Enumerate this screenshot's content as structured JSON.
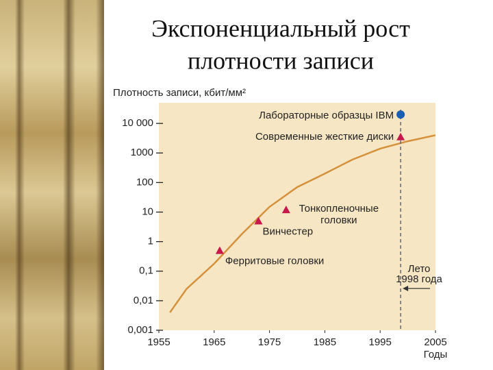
{
  "chart_data": {
    "type": "line",
    "title": [
      "Экспоненциальный рост",
      "плотности записи"
    ],
    "y_label": "Плотность записи, кбит/мм²",
    "x_label": "Годы",
    "log_y": true,
    "plot_color": "#f7e6c4",
    "xlim": [
      1955,
      2005
    ],
    "xticks": [
      1955,
      1965,
      1975,
      1985,
      1995,
      2005
    ],
    "ylim": [
      0.001,
      50000
    ],
    "yticks": [
      {
        "value": 0.001,
        "label": "0,001"
      },
      {
        "value": 0.01,
        "label": "0,01"
      },
      {
        "value": 0.1,
        "label": "0,1"
      },
      1,
      10,
      100,
      1000,
      {
        "value": 10000,
        "label": "10 000"
      }
    ],
    "x": [
      1957,
      1960,
      1965,
      1970,
      1975,
      1980,
      1985,
      1990,
      1995,
      2000,
      2005
    ],
    "series": [
      {
        "color": "#d4903a",
        "values": [
          0.004,
          0.025,
          0.18,
          1.8,
          15,
          70,
          200,
          600,
          1400,
          2500,
          4000
        ]
      }
    ],
    "points": [
      {
        "label": [
          "Ферритовые головки"
        ],
        "x": 1966,
        "y": 0.5,
        "marker": "triangle",
        "color": "#c8174a"
      },
      {
        "label": [
          "Винчестер"
        ],
        "x": 1973,
        "y": 5,
        "marker": "triangle",
        "color": "#c8174a"
      },
      {
        "label": [
          "Тонкопленочные",
          "головки"
        ],
        "x": 1978,
        "y": 12,
        "marker": "triangle",
        "color": "#c8174a"
      },
      {
        "label": [
          "Современные жесткие диски"
        ],
        "x": 1998.7,
        "y": 3500,
        "marker": "triangle",
        "color": "#c8174a"
      },
      {
        "label": [
          "Лабораторные образцы IBM"
        ],
        "x": 1998.7,
        "y": 20000,
        "marker": "circle",
        "color": "#1a5fb4"
      }
    ],
    "vline": {
      "x": 1998.7,
      "label": [
        "Лето",
        "1998 года"
      ]
    }
  }
}
